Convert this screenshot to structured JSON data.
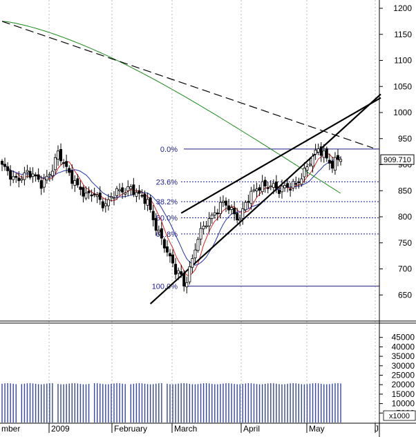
{
  "chart_data": {
    "type": "candlestick",
    "price_axis": {
      "ticks": [
        "1200",
        "1150",
        "1100",
        "1050",
        "1000",
        "950",
        "900",
        "850",
        "800",
        "750",
        "700",
        "650"
      ],
      "ylim": [
        600,
        1225
      ]
    },
    "volume_axis": {
      "ticks": [
        "45000",
        "40000",
        "35000",
        "30000",
        "25000",
        "20000",
        "15000",
        "10000",
        "5000"
      ],
      "multiplier_label": "x1000",
      "ylim": [
        0,
        50000
      ]
    },
    "x_labels": [
      "mber",
      "2009",
      "February",
      "March",
      "April",
      "May",
      "J"
    ],
    "last_price_badge": "909.710",
    "fibonacci": {
      "levels": [
        {
          "label": "0.0%",
          "value": 930
        },
        {
          "label": "23.6%",
          "value": 867
        },
        {
          "label": "38.2%",
          "value": 829
        },
        {
          "label": "50.0%",
          "value": 798
        },
        {
          "label": "61.8%",
          "value": 767
        },
        {
          "label": "100.0%",
          "value": 667
        }
      ]
    },
    "trendlines": [
      {
        "name": "long-term-downtrend",
        "style": "dashed",
        "from": [
          0,
          1175
        ],
        "to": [
          120,
          955
        ]
      },
      {
        "name": "wedge-upper",
        "style": "solid",
        "from": [
          64,
          807
        ],
        "to": [
          123,
          990
        ]
      },
      {
        "name": "wedge-lower",
        "style": "solid",
        "from": [
          53,
          633
        ],
        "to": [
          123,
          975
        ]
      }
    ],
    "colors": {
      "up_candle": "#ffffff",
      "down_candle": "#000000",
      "ma_short": "#dd2222",
      "ma_mid": "#2233aa",
      "ma_long": "#1a8a1a",
      "fib": "#1a1a8c",
      "volume": "#3344aa"
    }
  }
}
